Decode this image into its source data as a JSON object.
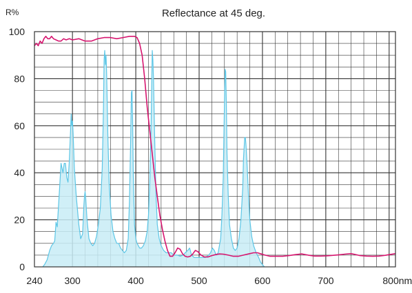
{
  "chart_data": {
    "type": "line",
    "title": "Reflectance at 45 deg.",
    "ylabel": "R%",
    "xlabel": "",
    "x_unit_label": "800nm",
    "xlim": [
      240,
      810
    ],
    "ylim": [
      0,
      100
    ],
    "grid": true,
    "x_ticks": [
      240,
      300,
      400,
      500,
      600,
      700,
      800
    ],
    "x_tick_labels": [
      "240",
      "300",
      "400",
      "500",
      "600",
      "700",
      "800nm"
    ],
    "x_minor_step": 20,
    "y_ticks": [
      0,
      20,
      40,
      60,
      80,
      100
    ],
    "y_tick_labels": [
      "0",
      "20",
      "40",
      "60",
      "80",
      "100"
    ],
    "y_minor_step": 5,
    "colors": {
      "reflectance": "#d6146e",
      "emission_line": "#5cc6e6",
      "emission_fill": "#c8ecf6",
      "grid": "#333333"
    },
    "series": [
      {
        "key": "reflectance",
        "style": "line",
        "points": [
          [
            240,
            94
          ],
          [
            243,
            95
          ],
          [
            246,
            94
          ],
          [
            249,
            96
          ],
          [
            252,
            95
          ],
          [
            255,
            97
          ],
          [
            258,
            98
          ],
          [
            261,
            97
          ],
          [
            264,
            97
          ],
          [
            267,
            98
          ],
          [
            270,
            97
          ],
          [
            274,
            96.5
          ],
          [
            278,
            96
          ],
          [
            282,
            96
          ],
          [
            286,
            97
          ],
          [
            290,
            96.5
          ],
          [
            295,
            97
          ],
          [
            300,
            96.5
          ],
          [
            310,
            97
          ],
          [
            320,
            96
          ],
          [
            330,
            96
          ],
          [
            340,
            97
          ],
          [
            350,
            97.5
          ],
          [
            360,
            97.5
          ],
          [
            370,
            97
          ],
          [
            380,
            97.5
          ],
          [
            390,
            98
          ],
          [
            398,
            98
          ],
          [
            402,
            97.5
          ],
          [
            406,
            95
          ],
          [
            410,
            90
          ],
          [
            414,
            80
          ],
          [
            418,
            68
          ],
          [
            422,
            58
          ],
          [
            426,
            48
          ],
          [
            430,
            38
          ],
          [
            434,
            30
          ],
          [
            438,
            22
          ],
          [
            442,
            16
          ],
          [
            446,
            11
          ],
          [
            450,
            7
          ],
          [
            454,
            4.5
          ],
          [
            458,
            4.5
          ],
          [
            462,
            6
          ],
          [
            466,
            8
          ],
          [
            470,
            7.5
          ],
          [
            474,
            5.5
          ],
          [
            478,
            4.5
          ],
          [
            482,
            4.2
          ],
          [
            486,
            4.5
          ],
          [
            490,
            5.5
          ],
          [
            494,
            7
          ],
          [
            498,
            6.5
          ],
          [
            502,
            5.2
          ],
          [
            508,
            4.2
          ],
          [
            514,
            4.2
          ],
          [
            520,
            4.8
          ],
          [
            526,
            5.2
          ],
          [
            532,
            5.5
          ],
          [
            538,
            5.4
          ],
          [
            546,
            5
          ],
          [
            554,
            4.5
          ],
          [
            562,
            4.5
          ],
          [
            570,
            5
          ],
          [
            578,
            5.5
          ],
          [
            586,
            6
          ],
          [
            592,
            6
          ],
          [
            598,
            5.5
          ],
          [
            604,
            5
          ],
          [
            612,
            4.5
          ],
          [
            622,
            4.5
          ],
          [
            632,
            4.5
          ],
          [
            642,
            4.8
          ],
          [
            652,
            5.2
          ],
          [
            662,
            5.5
          ],
          [
            672,
            5
          ],
          [
            682,
            4.6
          ],
          [
            692,
            4.6
          ],
          [
            702,
            4.7
          ],
          [
            712,
            4.9
          ],
          [
            720,
            5.1
          ],
          [
            730,
            5.4
          ],
          [
            740,
            5.6
          ],
          [
            746,
            5.3
          ],
          [
            754,
            4.8
          ],
          [
            764,
            4.6
          ],
          [
            774,
            4.5
          ],
          [
            784,
            4.6
          ],
          [
            794,
            4.9
          ],
          [
            800,
            5.2
          ],
          [
            810,
            5.6
          ]
        ]
      },
      {
        "key": "emission",
        "style": "area",
        "points": [
          [
            253,
            0
          ],
          [
            256,
            1
          ],
          [
            260,
            3
          ],
          [
            264,
            7
          ],
          [
            267,
            9
          ],
          [
            270,
            10
          ],
          [
            272,
            11
          ],
          [
            274,
            19
          ],
          [
            276,
            17
          ],
          [
            280,
            35
          ],
          [
            282,
            44
          ],
          [
            285,
            40
          ],
          [
            287,
            44
          ],
          [
            289,
            44
          ],
          [
            291,
            38
          ],
          [
            293,
            36
          ],
          [
            295,
            45
          ],
          [
            297,
            58
          ],
          [
            298,
            65
          ],
          [
            299,
            60
          ],
          [
            300,
            62
          ],
          [
            301,
            57
          ],
          [
            303,
            42
          ],
          [
            306,
            30
          ],
          [
            310,
            18
          ],
          [
            313,
            12
          ],
          [
            316,
            14
          ],
          [
            318,
            26
          ],
          [
            319,
            30
          ],
          [
            320,
            32
          ],
          [
            321,
            29
          ],
          [
            323,
            20
          ],
          [
            326,
            12
          ],
          [
            329,
            10
          ],
          [
            332,
            9
          ],
          [
            335,
            10
          ],
          [
            338,
            13
          ],
          [
            341,
            18
          ],
          [
            344,
            25
          ],
          [
            347,
            42
          ],
          [
            349,
            68
          ],
          [
            350,
            88
          ],
          [
            351,
            92
          ],
          [
            352,
            86
          ],
          [
            353,
            90
          ],
          [
            354,
            82
          ],
          [
            356,
            55
          ],
          [
            358,
            35
          ],
          [
            361,
            22
          ],
          [
            364,
            15
          ],
          [
            367,
            12
          ],
          [
            370,
            10
          ],
          [
            373,
            10
          ],
          [
            376,
            8
          ],
          [
            379,
            7
          ],
          [
            382,
            6
          ],
          [
            385,
            7
          ],
          [
            388,
            12
          ],
          [
            390,
            28
          ],
          [
            392,
            55
          ],
          [
            393,
            74
          ],
          [
            394,
            75
          ],
          [
            395,
            62
          ],
          [
            396,
            40
          ],
          [
            398,
            18
          ],
          [
            400,
            12
          ],
          [
            402,
            10
          ],
          [
            404,
            9
          ],
          [
            406,
            8
          ],
          [
            409,
            8
          ],
          [
            412,
            9
          ],
          [
            415,
            11
          ],
          [
            418,
            15
          ],
          [
            420,
            22
          ],
          [
            422,
            35
          ],
          [
            424,
            58
          ],
          [
            425,
            75
          ],
          [
            426,
            92
          ],
          [
            427,
            88
          ],
          [
            428,
            80
          ],
          [
            430,
            52
          ],
          [
            432,
            30
          ],
          [
            434,
            18
          ],
          [
            437,
            12
          ],
          [
            440,
            9
          ],
          [
            444,
            7
          ],
          [
            448,
            6
          ],
          [
            452,
            6
          ],
          [
            456,
            6
          ],
          [
            460,
            5
          ],
          [
            466,
            5
          ],
          [
            470,
            4.5
          ],
          [
            475,
            5
          ],
          [
            478,
            6
          ],
          [
            482,
            7
          ],
          [
            485,
            8
          ],
          [
            488,
            5
          ],
          [
            492,
            4
          ],
          [
            496,
            4
          ],
          [
            500,
            4
          ],
          [
            505,
            4
          ],
          [
            510,
            4
          ],
          [
            515,
            5
          ],
          [
            518,
            6
          ],
          [
            521,
            8
          ],
          [
            524,
            7
          ],
          [
            527,
            5
          ],
          [
            530,
            6
          ],
          [
            534,
            12
          ],
          [
            536,
            22
          ],
          [
            538,
            38
          ],
          [
            539,
            54
          ],
          [
            540,
            70
          ],
          [
            541,
            84
          ],
          [
            542,
            83
          ],
          [
            543,
            70
          ],
          [
            544,
            48
          ],
          [
            546,
            30
          ],
          [
            548,
            18
          ],
          [
            551,
            12
          ],
          [
            554,
            8
          ],
          [
            557,
            7
          ],
          [
            560,
            8
          ],
          [
            563,
            12
          ],
          [
            566,
            20
          ],
          [
            569,
            34
          ],
          [
            570,
            46
          ],
          [
            572,
            55
          ],
          [
            573,
            55
          ],
          [
            574,
            52
          ],
          [
            576,
            42
          ],
          [
            578,
            30
          ],
          [
            580,
            20
          ],
          [
            583,
            13
          ],
          [
            586,
            9
          ],
          [
            590,
            6
          ],
          [
            594,
            4
          ],
          [
            597,
            2
          ],
          [
            600,
            1
          ],
          [
            603,
            0
          ]
        ]
      }
    ]
  }
}
